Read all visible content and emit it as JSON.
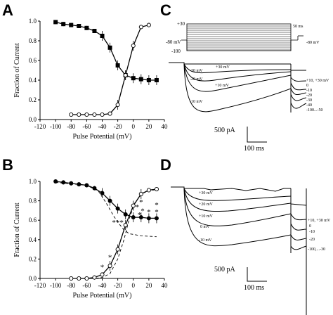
{
  "panels": {
    "a": "A",
    "b": "B",
    "c": "C",
    "d": "D"
  },
  "axes": {
    "xlabel": "Pulse Potential (mV)",
    "ylabel": "Fraction of Current",
    "xlim": [
      -120,
      40
    ],
    "ylim": [
      0,
      1.0
    ],
    "xticks": [
      "-120",
      "-100",
      "-80",
      "-60",
      "-40",
      "-20",
      "0",
      "20",
      "40"
    ],
    "yticks": [
      "0.0",
      "0.2",
      "0.4",
      "0.6",
      "0.8",
      "1.0"
    ]
  },
  "chart_data": [
    {
      "type": "scatter",
      "panel": "A",
      "xlabel": "Pulse Potential (mV)",
      "ylabel": "Fraction of Current",
      "xlim": [
        -120,
        40
      ],
      "ylim": [
        0,
        1.0
      ],
      "series": [
        {
          "marker": "filled-square",
          "x": [
            -100,
            -90,
            -80,
            -70,
            -60,
            -50,
            -40,
            -30,
            -20,
            -10,
            0,
            10,
            20,
            30
          ],
          "y": [
            0.99,
            0.97,
            0.96,
            0.95,
            0.93,
            0.9,
            0.85,
            0.73,
            0.55,
            0.45,
            0.42,
            0.41,
            0.4,
            0.4
          ]
        },
        {
          "marker": "open-circle",
          "x": [
            -80,
            -70,
            -60,
            -50,
            -40,
            -30,
            -20,
            -10,
            0,
            10,
            20
          ],
          "y": [
            0.05,
            0.05,
            0.05,
            0.05,
            0.05,
            0.06,
            0.15,
            0.45,
            0.75,
            0.94,
            0.96
          ]
        }
      ]
    },
    {
      "type": "scatter",
      "panel": "B",
      "xlabel": "Pulse Potential (mV)",
      "ylabel": "Fraction of Current",
      "xlim": [
        -120,
        40
      ],
      "ylim": [
        0,
        1.0
      ],
      "series": [
        {
          "marker": "filled-circle",
          "x": [
            -100,
            -90,
            -80,
            -70,
            -60,
            -50,
            -40,
            -30,
            -20,
            -10,
            0,
            10,
            20,
            30
          ],
          "y": [
            1.0,
            0.99,
            0.98,
            0.97,
            0.96,
            0.93,
            0.88,
            0.8,
            0.72,
            0.66,
            0.63,
            0.63,
            0.62,
            0.62
          ]
        },
        {
          "marker": "open-circle",
          "x": [
            -80,
            -70,
            -60,
            -50,
            -40,
            -30,
            -20,
            -10,
            0,
            10,
            20,
            30
          ],
          "y": [
            0.0,
            0.0,
            0.0,
            0.01,
            0.04,
            0.13,
            0.3,
            0.55,
            0.75,
            0.87,
            0.91,
            0.92
          ]
        }
      ],
      "annotations": [
        "*",
        "*",
        "*",
        "*",
        "*",
        "*",
        "*",
        "*",
        "*",
        "*",
        "*",
        "*"
      ]
    }
  ],
  "panel_c": {
    "protocol": {
      "plus30": "+30",
      "minus80": "-80 mV",
      "minus100": "-100",
      "ms50": "50 ms",
      "minus80r": "-80 mV"
    },
    "trace_labels": [
      "+30 mV",
      "-30 mV",
      "-20 mV",
      "+10 mV",
      "-10 mV"
    ],
    "tail_labels": [
      "+10, +30 mV",
      "0",
      "-10",
      "-20",
      "-30",
      "-40",
      "-100...-50"
    ],
    "scale": {
      "current": "500 pA",
      "time": "100 ms"
    }
  },
  "panel_d": {
    "trace_labels": [
      "+30 mV",
      "+20 mV",
      "+10 mV",
      "0 mV",
      "-10 mV"
    ],
    "tail_labels": [
      "+10, +30 mV",
      "0",
      "-10",
      "-20",
      "-100,...-30"
    ],
    "scale": {
      "current": "500 pA",
      "time": "100 ms"
    }
  }
}
